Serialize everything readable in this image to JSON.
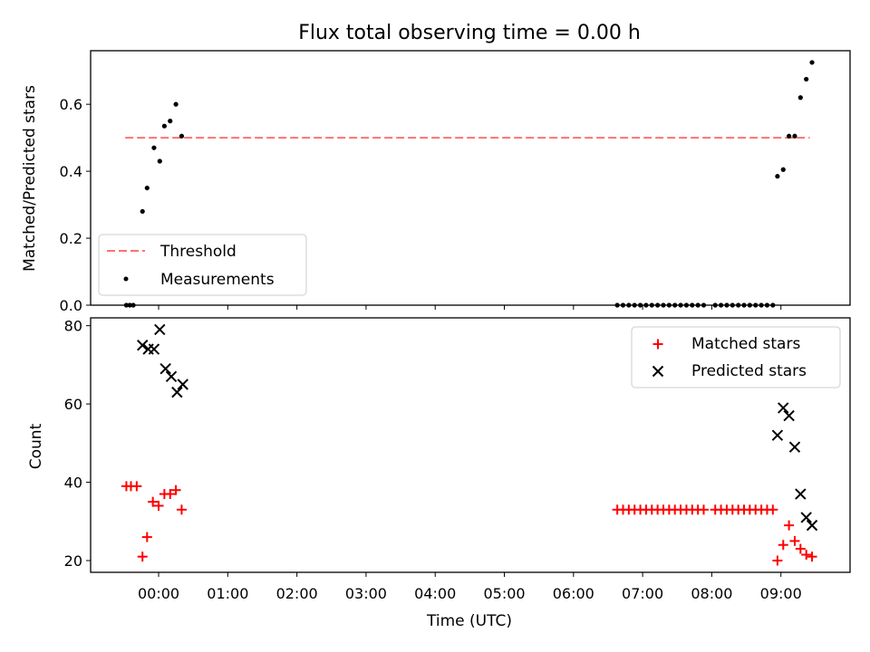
{
  "title": "Flux total observing time = 0.00 h",
  "colors": {
    "threshold": "#ff7070",
    "measurement": "#000000",
    "matched": "#ff0000",
    "predicted": "#000000"
  },
  "chart_data": [
    {
      "type": "scatter",
      "ylabel": "Matched/Predicted stars",
      "xlim": [
        "-00:59",
        "10:00"
      ],
      "ylim": [
        0,
        0.76
      ],
      "yticks": [
        "0.0",
        "0.2",
        "0.4",
        "0.6"
      ],
      "grid": false,
      "legend_position": "lower-left",
      "threshold": {
        "name": "Threshold",
        "value": 0.5,
        "x_range": [
          "-00:29",
          "09:25"
        ]
      },
      "measurements": {
        "name": "Measurements",
        "points": [
          [
            "-00:28",
            0.0
          ],
          [
            "-00:25",
            0.0
          ],
          [
            "-00:22",
            0.0
          ],
          [
            "-00:14",
            0.28
          ],
          [
            "-00:10",
            0.35
          ],
          [
            "-00:04",
            0.47
          ],
          [
            "00:01",
            0.43
          ],
          [
            "00:05",
            0.535
          ],
          [
            "00:10",
            0.55
          ],
          [
            "00:15",
            0.6
          ],
          [
            "00:20",
            0.505
          ],
          [
            "06:38",
            0.0
          ],
          [
            "06:43",
            0.0
          ],
          [
            "06:48",
            0.0
          ],
          [
            "06:53",
            0.0
          ],
          [
            "06:58",
            0.0
          ],
          [
            "07:03",
            0.0
          ],
          [
            "07:08",
            0.0
          ],
          [
            "07:13",
            0.0
          ],
          [
            "07:18",
            0.0
          ],
          [
            "07:23",
            0.0
          ],
          [
            "07:28",
            0.0
          ],
          [
            "07:33",
            0.0
          ],
          [
            "07:38",
            0.0
          ],
          [
            "07:43",
            0.0
          ],
          [
            "07:48",
            0.0
          ],
          [
            "07:53",
            0.0
          ],
          [
            "08:03",
            0.0
          ],
          [
            "08:08",
            0.0
          ],
          [
            "08:13",
            0.0
          ],
          [
            "08:18",
            0.0
          ],
          [
            "08:23",
            0.0
          ],
          [
            "08:28",
            0.0
          ],
          [
            "08:33",
            0.0
          ],
          [
            "08:38",
            0.0
          ],
          [
            "08:43",
            0.0
          ],
          [
            "08:48",
            0.0
          ],
          [
            "08:53",
            0.0
          ],
          [
            "08:57",
            0.385
          ],
          [
            "09:02",
            0.405
          ],
          [
            "09:07",
            0.505
          ],
          [
            "09:12",
            0.505
          ],
          [
            "09:17",
            0.62
          ],
          [
            "09:22",
            0.675
          ],
          [
            "09:27",
            0.725
          ]
        ]
      }
    },
    {
      "type": "scatter",
      "xlabel": "Time (UTC)",
      "ylabel": "Count",
      "xlim": [
        "-00:59",
        "10:00"
      ],
      "ylim": [
        17,
        82
      ],
      "xticks": [
        "00:00",
        "01:00",
        "02:00",
        "03:00",
        "04:00",
        "05:00",
        "06:00",
        "07:00",
        "08:00",
        "09:00"
      ],
      "yticks": [
        "20",
        "40",
        "60",
        "80"
      ],
      "grid": false,
      "legend_position": "upper-right",
      "series": [
        {
          "name": "Matched stars",
          "marker": "+",
          "points": [
            [
              "-00:28",
              39
            ],
            [
              "-00:24",
              39
            ],
            [
              "-00:19",
              39
            ],
            [
              "-00:14",
              21
            ],
            [
              "-00:10",
              26
            ],
            [
              "-00:05",
              35
            ],
            [
              "00:00",
              34
            ],
            [
              "00:05",
              37
            ],
            [
              "00:10",
              37
            ],
            [
              "00:15",
              38
            ],
            [
              "00:20",
              33
            ],
            [
              "06:38",
              33
            ],
            [
              "06:43",
              33
            ],
            [
              "06:48",
              33
            ],
            [
              "06:53",
              33
            ],
            [
              "06:58",
              33
            ],
            [
              "07:03",
              33
            ],
            [
              "07:08",
              33
            ],
            [
              "07:13",
              33
            ],
            [
              "07:18",
              33
            ],
            [
              "07:23",
              33
            ],
            [
              "07:28",
              33
            ],
            [
              "07:33",
              33
            ],
            [
              "07:38",
              33
            ],
            [
              "07:43",
              33
            ],
            [
              "07:48",
              33
            ],
            [
              "07:53",
              33
            ],
            [
              "08:03",
              33
            ],
            [
              "08:08",
              33
            ],
            [
              "08:13",
              33
            ],
            [
              "08:18",
              33
            ],
            [
              "08:23",
              33
            ],
            [
              "08:28",
              33
            ],
            [
              "08:33",
              33
            ],
            [
              "08:38",
              33
            ],
            [
              "08:43",
              33
            ],
            [
              "08:48",
              33
            ],
            [
              "08:53",
              33
            ],
            [
              "08:57",
              20
            ],
            [
              "09:02",
              24
            ],
            [
              "09:07",
              29
            ],
            [
              "09:12",
              25
            ],
            [
              "09:17",
              23
            ],
            [
              "09:22",
              21.5
            ],
            [
              "09:27",
              21
            ]
          ]
        },
        {
          "name": "Predicted stars",
          "marker": "x",
          "points": [
            [
              "-00:14",
              75
            ],
            [
              "-00:09",
              74
            ],
            [
              "-00:04",
              74
            ],
            [
              "00:01",
              79
            ],
            [
              "00:06",
              69
            ],
            [
              "00:11",
              67
            ],
            [
              "00:16",
              63
            ],
            [
              "00:21",
              65
            ],
            [
              "08:57",
              52
            ],
            [
              "09:02",
              59
            ],
            [
              "09:07",
              57
            ],
            [
              "09:12",
              49
            ],
            [
              "09:17",
              37
            ],
            [
              "09:22",
              31
            ],
            [
              "09:27",
              29
            ]
          ]
        }
      ]
    }
  ]
}
